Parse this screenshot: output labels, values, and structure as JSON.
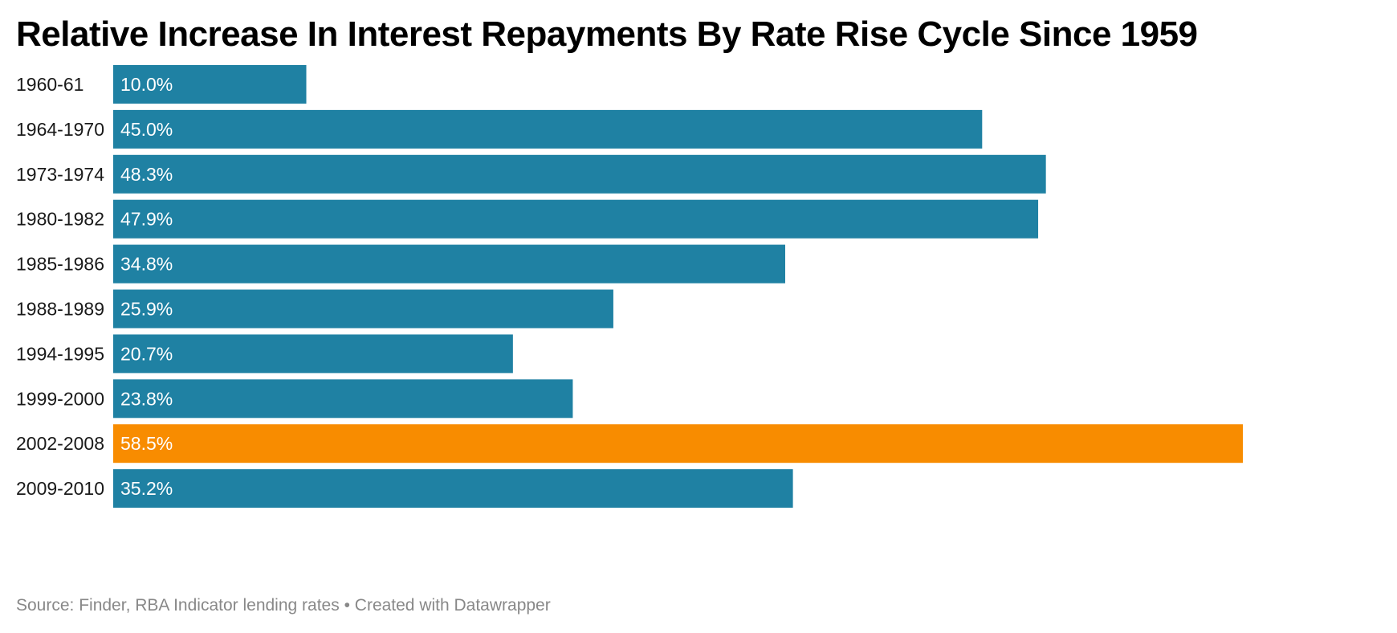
{
  "chart_data": {
    "type": "bar",
    "orientation": "horizontal",
    "title": "Relative Increase In Interest Repayments By Rate Rise Cycle Since 1959",
    "categories": [
      "1960-61",
      "1964-1970",
      "1973-1974",
      "1980-1982",
      "1985-1986",
      "1988-1989",
      "1994-1995",
      "1999-2000",
      "2002-2008",
      "2009-2010"
    ],
    "values": [
      10.0,
      45.0,
      48.3,
      47.9,
      34.8,
      25.9,
      20.7,
      23.8,
      58.5,
      35.2
    ],
    "value_labels": [
      "10.0%",
      "45.0%",
      "48.3%",
      "47.9%",
      "34.8%",
      "25.9%",
      "20.7%",
      "23.8%",
      "58.5%",
      "35.2%"
    ],
    "unit": "%",
    "xlim": [
      0,
      58.5
    ],
    "highlight_index": 8,
    "colors": {
      "default": "#1f81a3",
      "highlight": "#f88c00"
    },
    "grid": false,
    "legend": "none"
  },
  "footer": {
    "source": "Source: Finder, RBA Indicator lending rates",
    "separator": "•",
    "credit": "Created with Datawrapper"
  }
}
